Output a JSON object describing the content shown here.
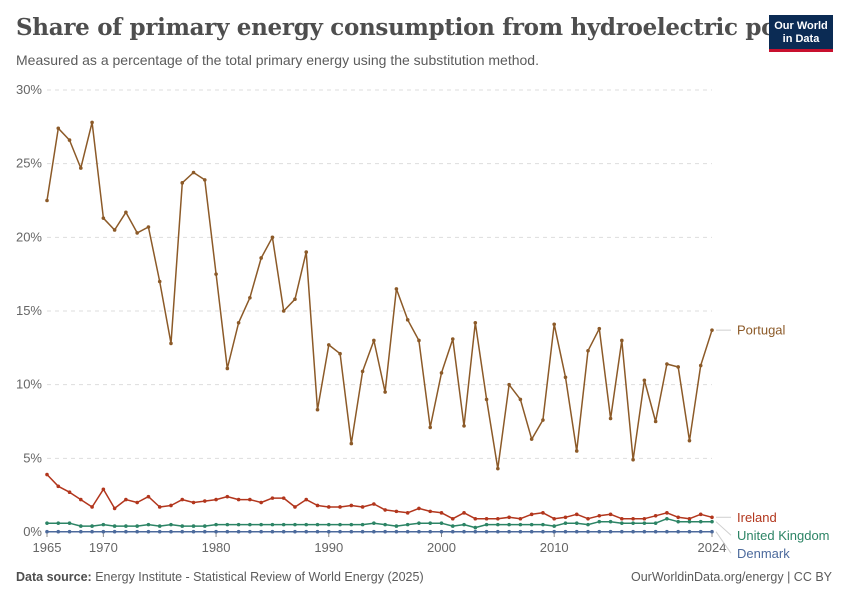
{
  "header": {
    "title": "Share of primary energy consumption from hydroelectric power",
    "subtitle": "Measured as a percentage of the total primary energy using the substitution method.",
    "logo_line1": "Our World",
    "logo_line2": "in Data"
  },
  "footer": {
    "source_label": "Data source:",
    "source_text": "Energy Institute - Statistical Review of World Energy (2025)",
    "right_text": "OurWorldinData.org/energy | CC BY"
  },
  "chart_data": {
    "type": "line",
    "title": "Share of primary energy consumption from hydroelectric power",
    "subtitle": "Measured as a percentage of the total primary energy using the substitution method.",
    "xlim": [
      1965,
      2024
    ],
    "ylim": [
      0,
      30
    ],
    "x_ticks": [
      1965,
      1970,
      1980,
      1990,
      2000,
      2010,
      2024
    ],
    "y_ticks": [
      0,
      5,
      10,
      15,
      20,
      25,
      30
    ],
    "y_tick_labels": [
      "0%",
      "5%",
      "10%",
      "15%",
      "20%",
      "25%",
      "30%"
    ],
    "grid": "horizontal dashed",
    "legend": "line-end labels on right",
    "x": [
      1965,
      1966,
      1967,
      1968,
      1969,
      1970,
      1971,
      1972,
      1973,
      1974,
      1975,
      1976,
      1977,
      1978,
      1979,
      1980,
      1981,
      1982,
      1983,
      1984,
      1985,
      1986,
      1987,
      1988,
      1989,
      1990,
      1991,
      1992,
      1993,
      1994,
      1995,
      1996,
      1997,
      1998,
      1999,
      2000,
      2001,
      2002,
      2003,
      2004,
      2005,
      2006,
      2007,
      2008,
      2009,
      2010,
      2011,
      2012,
      2013,
      2014,
      2015,
      2016,
      2017,
      2018,
      2019,
      2020,
      2021,
      2022,
      2023,
      2024
    ],
    "series": [
      {
        "name": "Portugal",
        "color": "#8c5a28",
        "values": [
          22.5,
          27.4,
          26.6,
          24.7,
          27.8,
          21.3,
          20.5,
          21.7,
          20.3,
          20.7,
          17.0,
          12.8,
          23.7,
          24.4,
          23.9,
          17.5,
          11.1,
          14.2,
          15.9,
          18.6,
          20.0,
          15.0,
          15.8,
          19.0,
          8.3,
          12.7,
          12.1,
          6.0,
          10.9,
          13.0,
          9.5,
          16.5,
          14.4,
          13.0,
          7.1,
          10.8,
          13.1,
          7.2,
          14.2,
          9.0,
          4.3,
          10.0,
          9.0,
          6.3,
          7.6,
          14.1,
          10.5,
          5.5,
          12.3,
          13.8,
          7.7,
          13.0,
          4.9,
          10.3,
          7.5,
          11.4,
          11.2,
          6.2,
          11.3,
          13.7
        ]
      },
      {
        "name": "Ireland",
        "color": "#b2361d",
        "values": [
          3.9,
          3.1,
          2.7,
          2.2,
          1.7,
          2.9,
          1.6,
          2.2,
          2.0,
          2.4,
          1.7,
          1.8,
          2.2,
          2.0,
          2.1,
          2.2,
          2.4,
          2.2,
          2.2,
          2.0,
          2.3,
          2.3,
          1.7,
          2.2,
          1.8,
          1.7,
          1.7,
          1.8,
          1.7,
          1.9,
          1.5,
          1.4,
          1.3,
          1.6,
          1.4,
          1.3,
          0.9,
          1.3,
          0.9,
          0.9,
          0.9,
          1.0,
          0.9,
          1.2,
          1.3,
          0.9,
          1.0,
          1.2,
          0.9,
          1.1,
          1.2,
          0.9,
          0.9,
          0.9,
          1.1,
          1.3,
          1.0,
          0.9,
          1.2,
          1.0
        ]
      },
      {
        "name": "United Kingdom",
        "color": "#2c8465",
        "values": [
          0.6,
          0.6,
          0.6,
          0.4,
          0.4,
          0.5,
          0.4,
          0.4,
          0.4,
          0.5,
          0.4,
          0.5,
          0.4,
          0.4,
          0.4,
          0.5,
          0.5,
          0.5,
          0.5,
          0.5,
          0.5,
          0.5,
          0.5,
          0.5,
          0.5,
          0.5,
          0.5,
          0.5,
          0.5,
          0.6,
          0.5,
          0.4,
          0.5,
          0.6,
          0.6,
          0.6,
          0.4,
          0.5,
          0.3,
          0.5,
          0.5,
          0.5,
          0.5,
          0.5,
          0.5,
          0.4,
          0.6,
          0.6,
          0.5,
          0.7,
          0.7,
          0.6,
          0.6,
          0.6,
          0.6,
          0.9,
          0.7,
          0.7,
          0.7,
          0.7
        ]
      },
      {
        "name": "Denmark",
        "color": "#4c6a9c",
        "values": [
          0.02,
          0.02,
          0.02,
          0.02,
          0.02,
          0.02,
          0.02,
          0.02,
          0.02,
          0.02,
          0.02,
          0.02,
          0.02,
          0.02,
          0.02,
          0.02,
          0.02,
          0.02,
          0.02,
          0.02,
          0.02,
          0.02,
          0.02,
          0.02,
          0.02,
          0.02,
          0.02,
          0.02,
          0.02,
          0.02,
          0.02,
          0.02,
          0.02,
          0.02,
          0.02,
          0.02,
          0.02,
          0.02,
          0.02,
          0.02,
          0.02,
          0.02,
          0.02,
          0.02,
          0.02,
          0.02,
          0.02,
          0.02,
          0.02,
          0.02,
          0.02,
          0.02,
          0.02,
          0.02,
          0.02,
          0.02,
          0.02,
          0.02,
          0.02,
          0.02
        ]
      }
    ]
  }
}
